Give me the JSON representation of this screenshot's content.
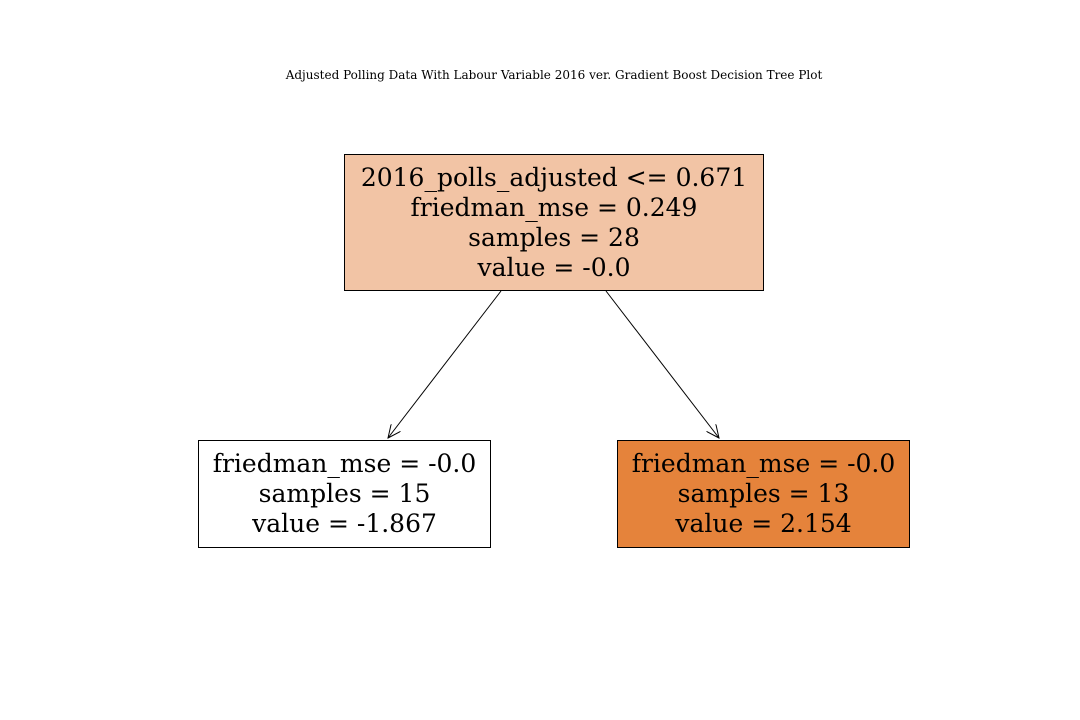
{
  "title": "Adjusted Polling Data With Labour Variable 2016 ver. Gradient Boost Decision Tree Plot",
  "tree": {
    "root": {
      "split": "2016_polls_adjusted <= 0.671",
      "mse": "friedman_mse = 0.249",
      "samples": "samples = 28",
      "value": "value = -0.0",
      "fill": "#f2c4a5"
    },
    "left": {
      "mse": "friedman_mse = -0.0",
      "samples": "samples = 15",
      "value": "value = -1.867",
      "fill": "#ffffff"
    },
    "right": {
      "mse": "friedman_mse = -0.0",
      "samples": "samples = 13",
      "value": "value = 2.154",
      "fill": "#e5833b"
    }
  }
}
